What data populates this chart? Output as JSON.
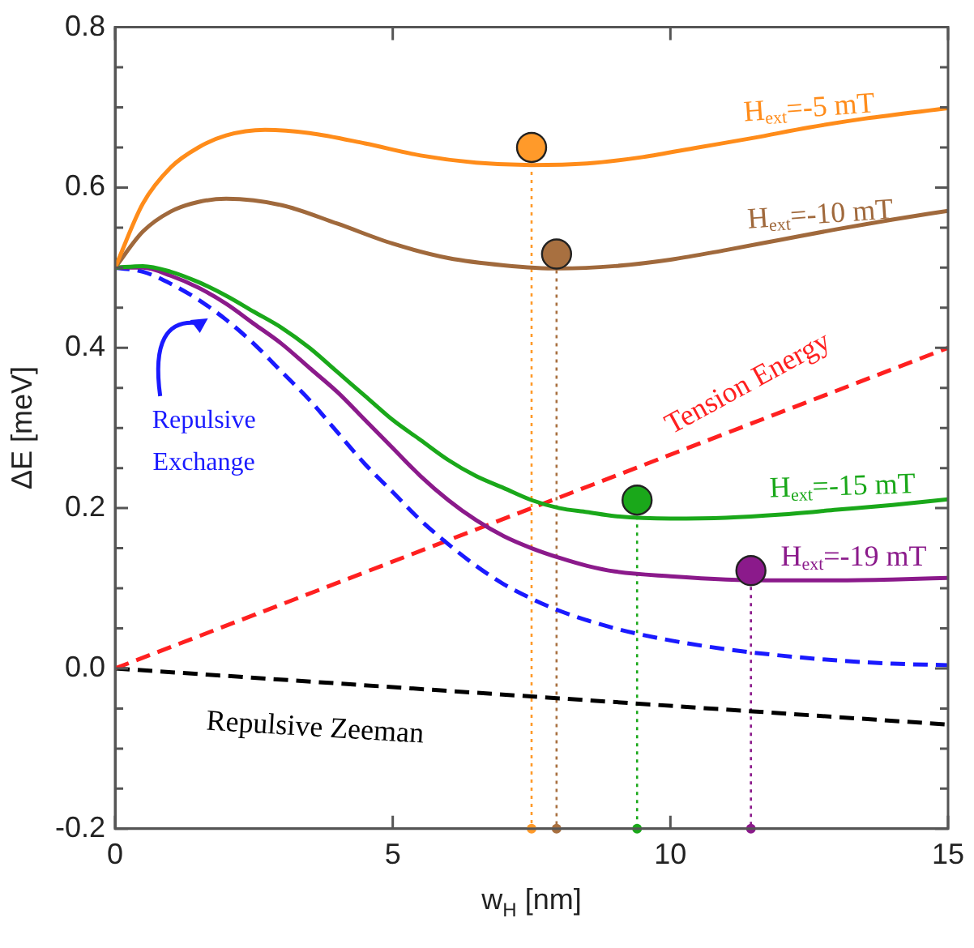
{
  "chart_data": {
    "type": "line",
    "xlabel": "w$_{H}$ [nm]",
    "ylabel": "ΔE [meV]",
    "xlim": [
      0,
      15
    ],
    "ylim": [
      -0.2,
      0.8
    ],
    "xticks": [
      0,
      5,
      10,
      15
    ],
    "yticks": [
      {
        "value": -0.2,
        "label": "-0.2"
      },
      {
        "value": -0.15,
        "label": null
      },
      {
        "value": -0.1,
        "label": null
      },
      {
        "value": -0.05,
        "label": null
      },
      {
        "value": 0,
        "label": "0.0"
      },
      {
        "value": 0.05,
        "label": null
      },
      {
        "value": 0.1,
        "label": null
      },
      {
        "value": 0.15,
        "label": null
      },
      0.2,
      {
        "value": 0.25,
        "label": null
      },
      {
        "value": 0.3,
        "label": null
      },
      {
        "value": 0.35,
        "label": null
      },
      0.4,
      {
        "value": 0.45,
        "label": null
      },
      {
        "value": 0.5,
        "label": null
      },
      {
        "value": 0.55,
        "label": null
      },
      0.6,
      {
        "value": 0.65,
        "label": null
      },
      {
        "value": 0.7,
        "label": null
      },
      {
        "value": 0.75,
        "label": null
      },
      0.8
    ],
    "ref_lines": [
      {
        "axis": "x",
        "value": 7.5,
        "color": "#ff9a2a",
        "line_style": "dotted"
      },
      {
        "axis": "x",
        "value": 7.95,
        "color": "#a87040",
        "line_style": "dotted"
      },
      {
        "axis": "x",
        "value": 9.4,
        "color": "#1aa81a",
        "line_style": "dotted"
      },
      {
        "axis": "x",
        "value": 11.45,
        "color": "#8b1a8b",
        "line_style": "dotted"
      }
    ],
    "grid": false,
    "legend": false,
    "marker": "none",
    "line_style": "solid",
    "series": [
      {
        "name": "H$_{ext}$=-5 mT",
        "color": "#ff8c1a",
        "x": [
          0,
          0.5,
          1,
          1.5,
          2,
          2.7,
          3.5,
          4.5,
          5.5,
          6.5,
          7.5,
          8.5,
          9.5,
          10.5,
          11.5,
          12.5,
          13.5,
          15
        ],
        "values": [
          0.5,
          0.58,
          0.625,
          0.65,
          0.665,
          0.672,
          0.668,
          0.655,
          0.64,
          0.631,
          0.628,
          0.63,
          0.638,
          0.65,
          0.662,
          0.675,
          0.686,
          0.699
        ]
      },
      {
        "name": "H$_{ext}$=-10 mT",
        "color": "#a0693c",
        "x": [
          0,
          0.5,
          1,
          1.5,
          2,
          3,
          4,
          5,
          6,
          7,
          8,
          9,
          10,
          11,
          12,
          13,
          14,
          15
        ],
        "values": [
          0.5,
          0.545,
          0.57,
          0.582,
          0.586,
          0.578,
          0.555,
          0.53,
          0.512,
          0.503,
          0.499,
          0.502,
          0.51,
          0.522,
          0.535,
          0.548,
          0.56,
          0.571
        ]
      },
      {
        "name": "H$_{ext}$=-15 mT",
        "color": "#1aa81a",
        "x": [
          0,
          0.5,
          1,
          1.5,
          2,
          2.5,
          3,
          3.5,
          4,
          4.5,
          5,
          5.5,
          6,
          6.5,
          7,
          7.5,
          8,
          8.5,
          9,
          10,
          11,
          12,
          13,
          14,
          15
        ],
        "values": [
          0.5,
          0.502,
          0.495,
          0.482,
          0.465,
          0.445,
          0.425,
          0.4,
          0.37,
          0.34,
          0.31,
          0.285,
          0.26,
          0.24,
          0.225,
          0.21,
          0.2,
          0.195,
          0.19,
          0.187,
          0.188,
          0.192,
          0.198,
          0.204,
          0.211
        ]
      },
      {
        "name": "H$_{ext}$=-19 mT",
        "color": "#8b1a8b",
        "x": [
          0,
          0.5,
          1,
          1.5,
          2,
          2.5,
          3,
          3.5,
          4,
          4.5,
          5,
          5.5,
          6,
          6.5,
          7,
          7.5,
          8,
          8.5,
          9,
          10,
          11,
          12,
          13,
          14,
          15
        ],
        "values": [
          0.5,
          0.5,
          0.49,
          0.475,
          0.455,
          0.43,
          0.405,
          0.375,
          0.345,
          0.31,
          0.275,
          0.24,
          0.21,
          0.185,
          0.165,
          0.15,
          0.138,
          0.128,
          0.121,
          0.115,
          0.111,
          0.11,
          0.11,
          0.111,
          0.113
        ]
      },
      {
        "name": "Repulsive Exchange",
        "color": "#1a1aff",
        "line_style": "dashed",
        "x": [
          0,
          0.5,
          1,
          1.5,
          2,
          2.5,
          3,
          3.5,
          4,
          4.5,
          5,
          5.5,
          6,
          6.5,
          7,
          7.5,
          8,
          9,
          10,
          11,
          12,
          13,
          14,
          15
        ],
        "values": [
          0.5,
          0.495,
          0.48,
          0.46,
          0.435,
          0.405,
          0.37,
          0.335,
          0.295,
          0.255,
          0.22,
          0.185,
          0.155,
          0.128,
          0.105,
          0.087,
          0.072,
          0.05,
          0.035,
          0.024,
          0.016,
          0.01,
          0.006,
          0.004
        ]
      },
      {
        "name": "Tension Energy",
        "color": "#ff2020",
        "line_style": "dashed",
        "x": [
          0,
          15
        ],
        "values": [
          0,
          0.4
        ]
      },
      {
        "name": "Repulsive Zeeman",
        "color": "#000000",
        "line_style": "dashed",
        "x": [
          0,
          15
        ],
        "values": [
          0,
          -0.07
        ]
      },
      {
        "type": "scatter",
        "marker": "circle",
        "colors": [
          "#ff9a2a",
          "#a87040",
          "#1aa81a",
          "#8b1a8b"
        ],
        "x": [
          7.5,
          7.95,
          9.4,
          11.45
        ],
        "values": [
          0.65,
          0.517,
          0.21,
          0.122
        ]
      },
      {
        "type": "scatter",
        "marker": "circle",
        "colors": [
          "#ff9a2a",
          "#a87040",
          "#1aa81a",
          "#8b1a8b"
        ],
        "x": [
          7.5,
          7.95,
          9.4,
          11.45
        ],
        "values": [
          -0.2,
          -0.2,
          -0.2,
          -0.2
        ]
      }
    ]
  }
}
